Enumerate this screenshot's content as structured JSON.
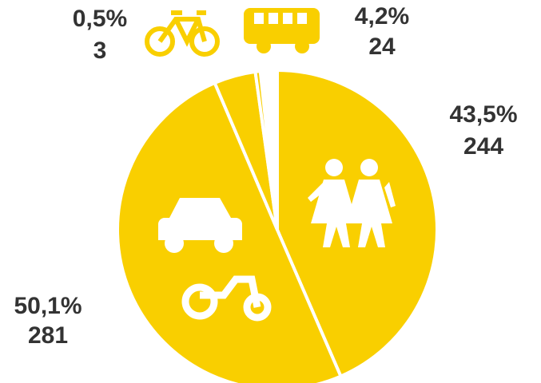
{
  "chart_data": {
    "type": "pie",
    "values": [
      43.5,
      50.1,
      4.2,
      0.5
    ],
    "value_labels": [
      "43,5%",
      "50,1%",
      "4,2%",
      "0,5%"
    ],
    "counts": [
      244,
      281,
      24,
      3
    ],
    "color": "#f9cf00"
  }
}
